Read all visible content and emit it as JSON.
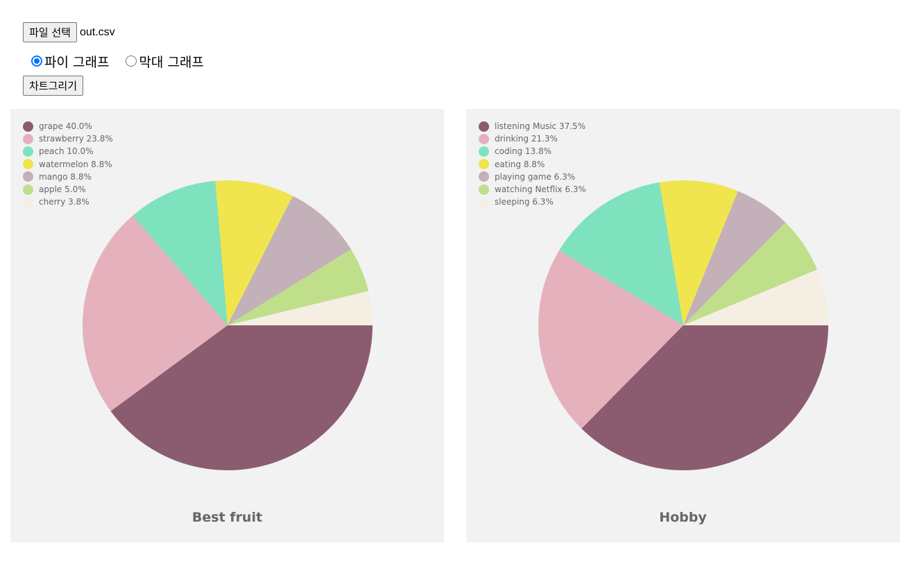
{
  "controls": {
    "file_button_label": "파일 선택",
    "file_name": "out.csv",
    "radio_pie_label": "파이 그래프",
    "radio_bar_label": "막대 그래프",
    "draw_button_label": "차트그리기"
  },
  "chart_data": [
    {
      "type": "pie",
      "title": "Best fruit",
      "legend": "top-left",
      "slices": [
        {
          "label": "grape",
          "percent_text": "40.0%",
          "value": 40.0,
          "color": "#8b5c6f"
        },
        {
          "label": "strawberry",
          "percent_text": "23.8%",
          "value": 23.8,
          "color": "#e5b1bd"
        },
        {
          "label": "peach",
          "percent_text": "10.0%",
          "value": 10.0,
          "color": "#7de2bd"
        },
        {
          "label": "watermelon",
          "percent_text": "8.8%",
          "value": 8.8,
          "color": "#f0e44f"
        },
        {
          "label": "mango",
          "percent_text": "8.8%",
          "value": 8.8,
          "color": "#c3b0b9"
        },
        {
          "label": "apple",
          "percent_text": "5.0%",
          "value": 5.0,
          "color": "#bfdf8b"
        },
        {
          "label": "cherry",
          "percent_text": "3.8%",
          "value": 3.8,
          "color": "#f5efe3"
        }
      ]
    },
    {
      "type": "pie",
      "title": "Hobby",
      "legend": "top-left",
      "slices": [
        {
          "label": "listening Music",
          "percent_text": "37.5%",
          "value": 37.5,
          "color": "#8b5c6f"
        },
        {
          "label": "drinking",
          "percent_text": "21.3%",
          "value": 21.3,
          "color": "#e5b1bd"
        },
        {
          "label": "coding",
          "percent_text": "13.8%",
          "value": 13.8,
          "color": "#7de2bd"
        },
        {
          "label": "eating",
          "percent_text": "8.8%",
          "value": 8.8,
          "color": "#f0e44f"
        },
        {
          "label": "playing game",
          "percent_text": "6.3%",
          "value": 6.3,
          "color": "#c3b0b9"
        },
        {
          "label": "watching Netflix",
          "percent_text": "6.3%",
          "value": 6.3,
          "color": "#bfdf8b"
        },
        {
          "label": "sleeping",
          "percent_text": "6.3%",
          "value": 6.3,
          "color": "#f5efe3"
        }
      ]
    }
  ]
}
